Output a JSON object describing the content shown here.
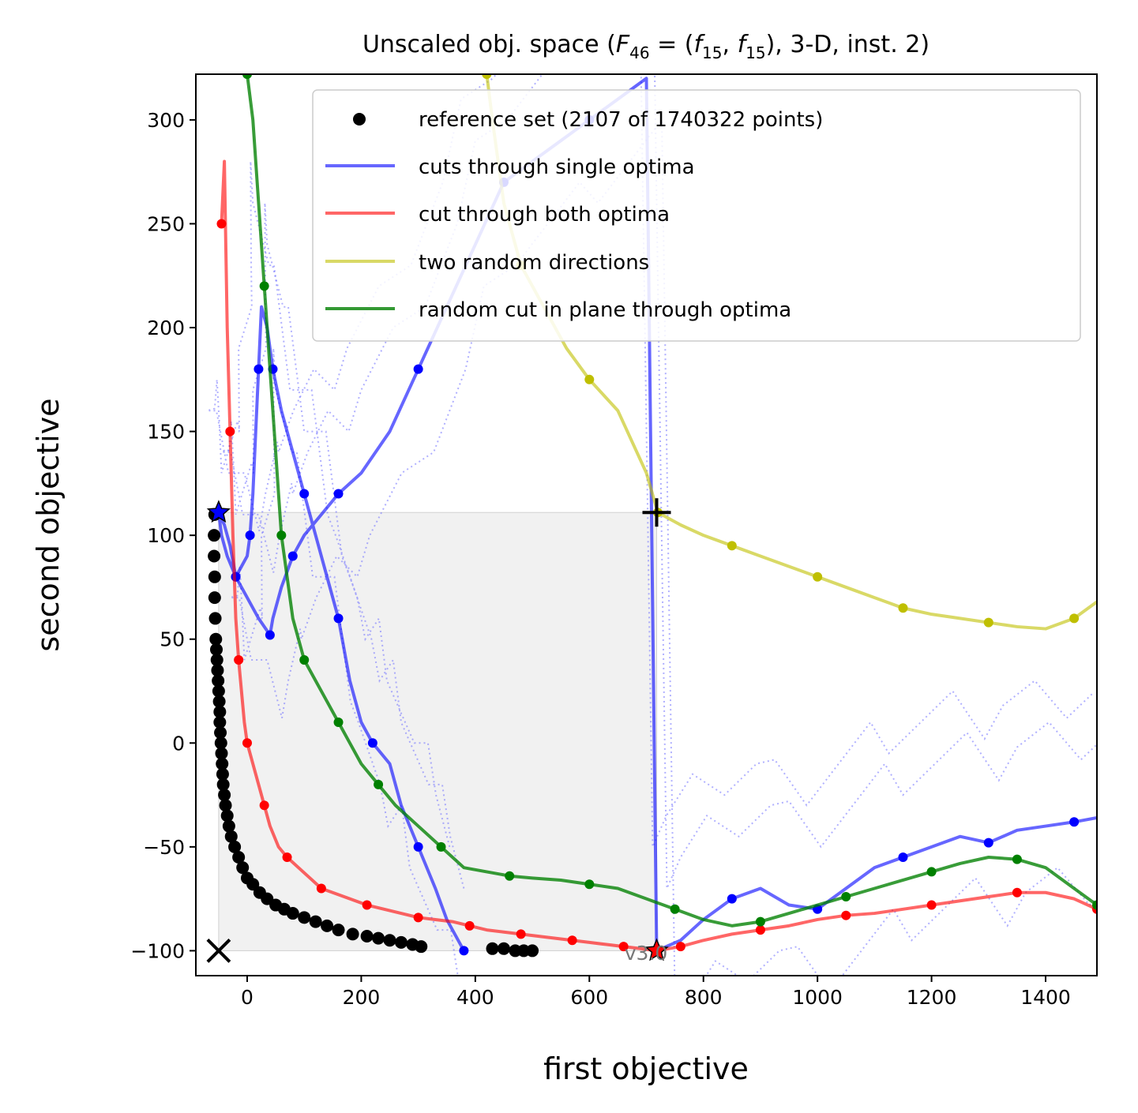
{
  "chart_data": {
    "type": "line",
    "title_plain": "Unscaled obj. space (",
    "title_F": "F",
    "title_F_sub": "46",
    "title_eq": " = (",
    "title_f1": "f",
    "title_f1_sub": "15",
    "title_comma": ", ",
    "title_f2": "f",
    "title_f2_sub": "15",
    "title_tail": "), 3-D, inst. 2)",
    "xlabel": "first objective",
    "ylabel": "second objective",
    "xlim": [
      -90,
      1490
    ],
    "ylim": [
      -112,
      322
    ],
    "xticks": [
      0,
      200,
      400,
      600,
      800,
      1000,
      1200,
      1400
    ],
    "yticks": [
      -100,
      -50,
      0,
      50,
      100,
      150,
      200,
      250,
      300
    ],
    "xtick_labels": [
      "0",
      "200",
      "400",
      "600",
      "800",
      "1000",
      "1200",
      "1400"
    ],
    "ytick_labels": [
      "−100",
      "−50",
      "0",
      "50",
      "100",
      "150",
      "200",
      "250",
      "300"
    ],
    "grid": false,
    "legend_position": "upper-right",
    "version_label": "v3.0",
    "colors": {
      "reference": "#000000",
      "single_optima": "#0000ff",
      "both_optima": "#ff0000",
      "random_directions": "#bfbf00",
      "plane_cut": "#008000",
      "dotted": "#6f6fff",
      "region": "#e6e6e6"
    },
    "markers": {
      "ideal_point": {
        "x": -50,
        "y": -100,
        "symbol": "x"
      },
      "nadir_point": {
        "x": 718,
        "y": 111,
        "symbol": "+"
      },
      "optimum_f1": {
        "x": -50,
        "y": 111,
        "symbol": "blue-star"
      },
      "optimum_f2": {
        "x": 718,
        "y": -100,
        "symbol": "red-star"
      }
    },
    "region": {
      "x": [
        -50,
        718
      ],
      "y": [
        -100,
        111
      ]
    },
    "series": [
      {
        "name": "reference set (2107 of 1740322 points)",
        "style": "points",
        "x": [
          -57,
          -58,
          -58,
          -57,
          -57,
          -56,
          -55,
          -54,
          -53,
          -52,
          -51,
          -50,
          -49,
          -48,
          -48,
          -47,
          -46,
          -45,
          -44,
          -43,
          -42,
          -40,
          -38,
          -35,
          -32,
          -28,
          -22,
          -15,
          -8,
          0,
          10,
          22,
          35,
          50,
          65,
          80,
          100,
          120,
          140,
          160,
          185,
          210,
          230,
          250,
          270,
          290,
          305,
          430,
          450,
          470,
          485,
          500
        ],
        "y": [
          110,
          100,
          90,
          80,
          70,
          60,
          50,
          45,
          40,
          35,
          30,
          25,
          20,
          15,
          10,
          5,
          0,
          -5,
          -10,
          -15,
          -20,
          -25,
          -30,
          -35,
          -40,
          -45,
          -50,
          -55,
          -60,
          -65,
          -68,
          -72,
          -75,
          -78,
          -80,
          -82,
          -84,
          -86,
          -88,
          -90,
          -92,
          -93,
          -94,
          -95,
          -96,
          -97,
          -98,
          -99,
          -99,
          -100,
          -100,
          -100
        ]
      },
      {
        "name": "cuts through single optima",
        "style": "line",
        "x": [
          380,
          350,
          330,
          300,
          270,
          250,
          220,
          200,
          180,
          160,
          140,
          120,
          100,
          80,
          60,
          45,
          35,
          25,
          20,
          15,
          10,
          5,
          0,
          -10,
          -20,
          -30,
          -40,
          -50,
          -45,
          -35,
          -20,
          0,
          20,
          40,
          45,
          60,
          80,
          100,
          130,
          160,
          200,
          250,
          300,
          350,
          400,
          450,
          500,
          550,
          600,
          650,
          700,
          718,
          760,
          800,
          850,
          900,
          950,
          1000,
          1050,
          1100,
          1150,
          1200,
          1250,
          1300,
          1350,
          1400,
          1450,
          1490
        ],
        "y": [
          -100,
          -85,
          -70,
          -50,
          -30,
          -10,
          0,
          10,
          30,
          60,
          80,
          100,
          120,
          140,
          160,
          180,
          200,
          210,
          180,
          150,
          120,
          100,
          90,
          85,
          80,
          95,
          105,
          111,
          100,
          90,
          80,
          70,
          60,
          52,
          60,
          75,
          90,
          100,
          110,
          120,
          130,
          150,
          180,
          210,
          240,
          270,
          280,
          290,
          300,
          310,
          320,
          -100,
          -95,
          -85,
          -75,
          -70,
          -78,
          -80,
          -70,
          -60,
          -55,
          -50,
          -45,
          -48,
          -42,
          -40,
          -38,
          -36
        ]
      },
      {
        "name": "cut through both optima",
        "style": "line",
        "x": [
          -45,
          -40,
          -35,
          -30,
          -25,
          -20,
          -15,
          -10,
          -5,
          0,
          10,
          20,
          30,
          40,
          55,
          70,
          90,
          110,
          130,
          150,
          180,
          210,
          240,
          270,
          300,
          330,
          360,
          390,
          420,
          450,
          480,
          510,
          540,
          570,
          600,
          630,
          660,
          690,
          718,
          760,
          800,
          850,
          900,
          950,
          1000,
          1050,
          1100,
          1150,
          1200,
          1250,
          1300,
          1350,
          1400,
          1450,
          1490
        ],
        "y": [
          250,
          280,
          200,
          150,
          100,
          60,
          40,
          25,
          10,
          0,
          -10,
          -20,
          -30,
          -40,
          -50,
          -55,
          -60,
          -65,
          -70,
          -72,
          -75,
          -78,
          -80,
          -82,
          -84,
          -85,
          -86,
          -88,
          -90,
          -91,
          -92,
          -93,
          -94,
          -95,
          -96,
          -97,
          -98,
          -99,
          -100,
          -98,
          -95,
          -92,
          -90,
          -88,
          -85,
          -83,
          -82,
          -80,
          -78,
          -76,
          -74,
          -72,
          -72,
          -75,
          -80
        ]
      },
      {
        "name": "two random directions",
        "style": "line",
        "x": [
          420,
          430,
          450,
          480,
          520,
          560,
          600,
          650,
          700,
          720,
          760,
          800,
          850,
          900,
          950,
          1000,
          1050,
          1100,
          1150,
          1200,
          1250,
          1300,
          1350,
          1400,
          1450,
          1490
        ],
        "y": [
          322,
          300,
          260,
          230,
          210,
          190,
          175,
          160,
          130,
          111,
          105,
          100,
          95,
          90,
          85,
          80,
          75,
          70,
          65,
          62,
          60,
          58,
          56,
          55,
          60,
          68
        ]
      },
      {
        "name": "random cut in plane through optima",
        "style": "line",
        "x": [
          0,
          10,
          20,
          30,
          40,
          50,
          60,
          70,
          80,
          100,
          120,
          140,
          160,
          180,
          200,
          230,
          260,
          300,
          340,
          380,
          420,
          460,
          500,
          550,
          600,
          650,
          700,
          750,
          800,
          850,
          900,
          950,
          1000,
          1050,
          1100,
          1150,
          1200,
          1250,
          1300,
          1350,
          1400,
          1450,
          1490
        ],
        "y": [
          322,
          300,
          260,
          220,
          180,
          140,
          100,
          80,
          60,
          40,
          30,
          20,
          10,
          0,
          -10,
          -20,
          -30,
          -40,
          -50,
          -60,
          -62,
          -64,
          -65,
          -66,
          -68,
          -70,
          -75,
          -80,
          -85,
          -88,
          -86,
          -82,
          -78,
          -74,
          -70,
          -66,
          -62,
          -58,
          -55,
          -56,
          -60,
          -70,
          -78
        ]
      }
    ]
  }
}
